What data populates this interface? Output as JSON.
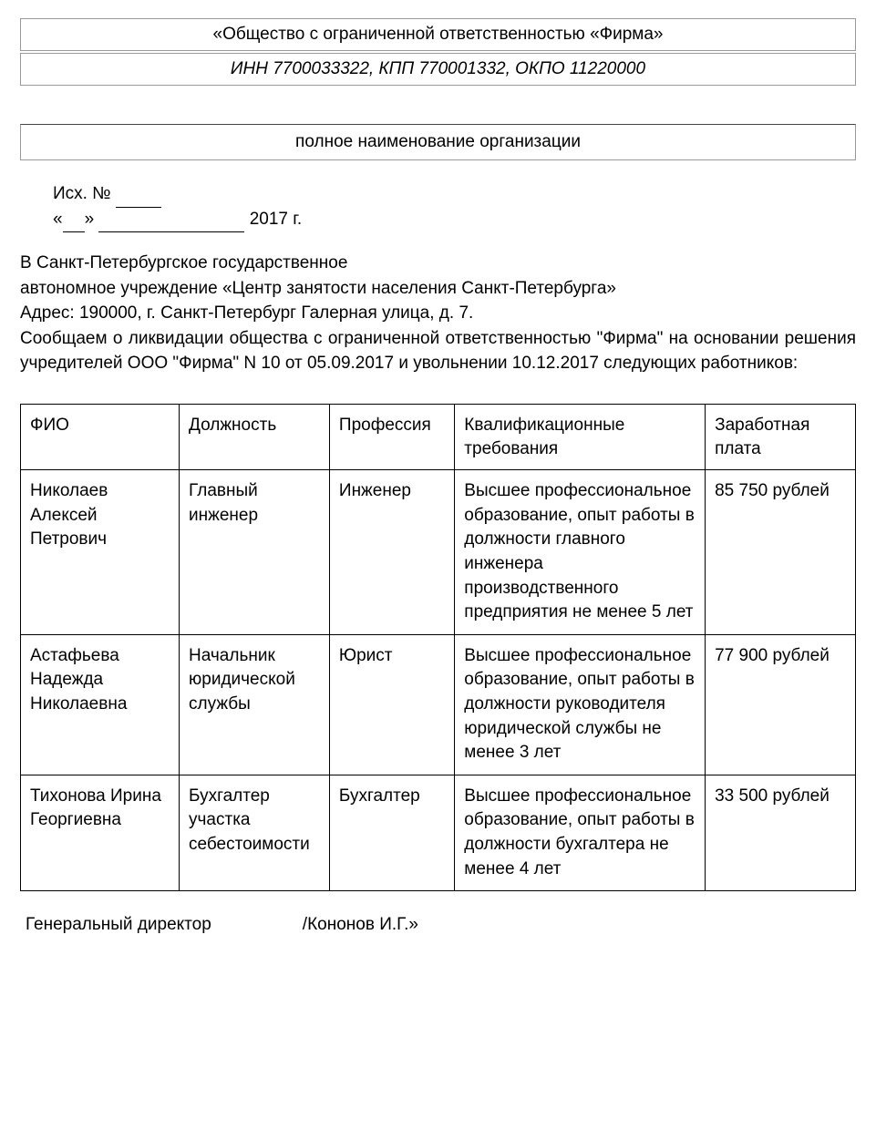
{
  "header": {
    "company_line": "«Общество с ограниченной ответственностью «Фирма»",
    "tax_line": "ИНН 7700033322, КПП 770001332, ОКПО 11220000",
    "org_placeholder": "полное наименование организации"
  },
  "ref": {
    "outgoing_label": "Исх. №",
    "date_open": "«",
    "date_mid": "»",
    "year_suffix": "2017 г."
  },
  "body": {
    "line1": "В Санкт-Петербургское государственное",
    "line2": "автономное учреждение «Центр занятости населения Санкт-Петербурга»",
    "line3": "Адрес: 190000, г. Санкт-Петербург Галерная улица, д. 7.",
    "para": "Сообщаем о ликвидации общества с ограниченной ответственностью \"Фирма\" на основании решения учредителей ООО \"Фирма\" N 10 от 05.09.2017 и увольнении 10.12.2017 следующих работников:"
  },
  "table": {
    "columns": [
      "ФИО",
      "Должность",
      "Профессия",
      "Квалификационные требования",
      "Заработная плата"
    ],
    "col_widths_pct": [
      19,
      18,
      15,
      30,
      18
    ],
    "rows": [
      {
        "fio": "Николаев Алексей Петрович",
        "position": "Главный инженер",
        "profession": "Инженер",
        "requirements": "Высшее профессиональное образование, опыт работы в должности главного инженера производственного предприятия не менее 5 лет",
        "salary": "85 750 рублей"
      },
      {
        "fio": "Астафьева Надежда Николаевна",
        "position": "Начальник юридической службы",
        "profession": "Юрист",
        "requirements": "Высшее профессиональное образование, опыт работы в должности руководителя юридической службы не менее 3 лет",
        "salary": "77 900 рублей"
      },
      {
        "fio": "Тихонова Ирина Георгиевна",
        "position": "Бухгалтер участка себестоимости",
        "profession": "Бухгалтер",
        "requirements": "Высшее профессиональное образование, опыт работы в должности бухгалтера не менее 4 лет",
        "salary": "33 500 рублей"
      }
    ]
  },
  "signature": {
    "title": "Генеральный директор",
    "name": "/Кононов И.Г.»"
  },
  "colors": {
    "text": "#000000",
    "border_light": "#999999",
    "border_dark": "#000000",
    "background": "#ffffff"
  },
  "typography": {
    "base_font_family": "Arial",
    "base_font_size_pt": 14,
    "header_font_size_pt": 14,
    "italic_header": true
  }
}
